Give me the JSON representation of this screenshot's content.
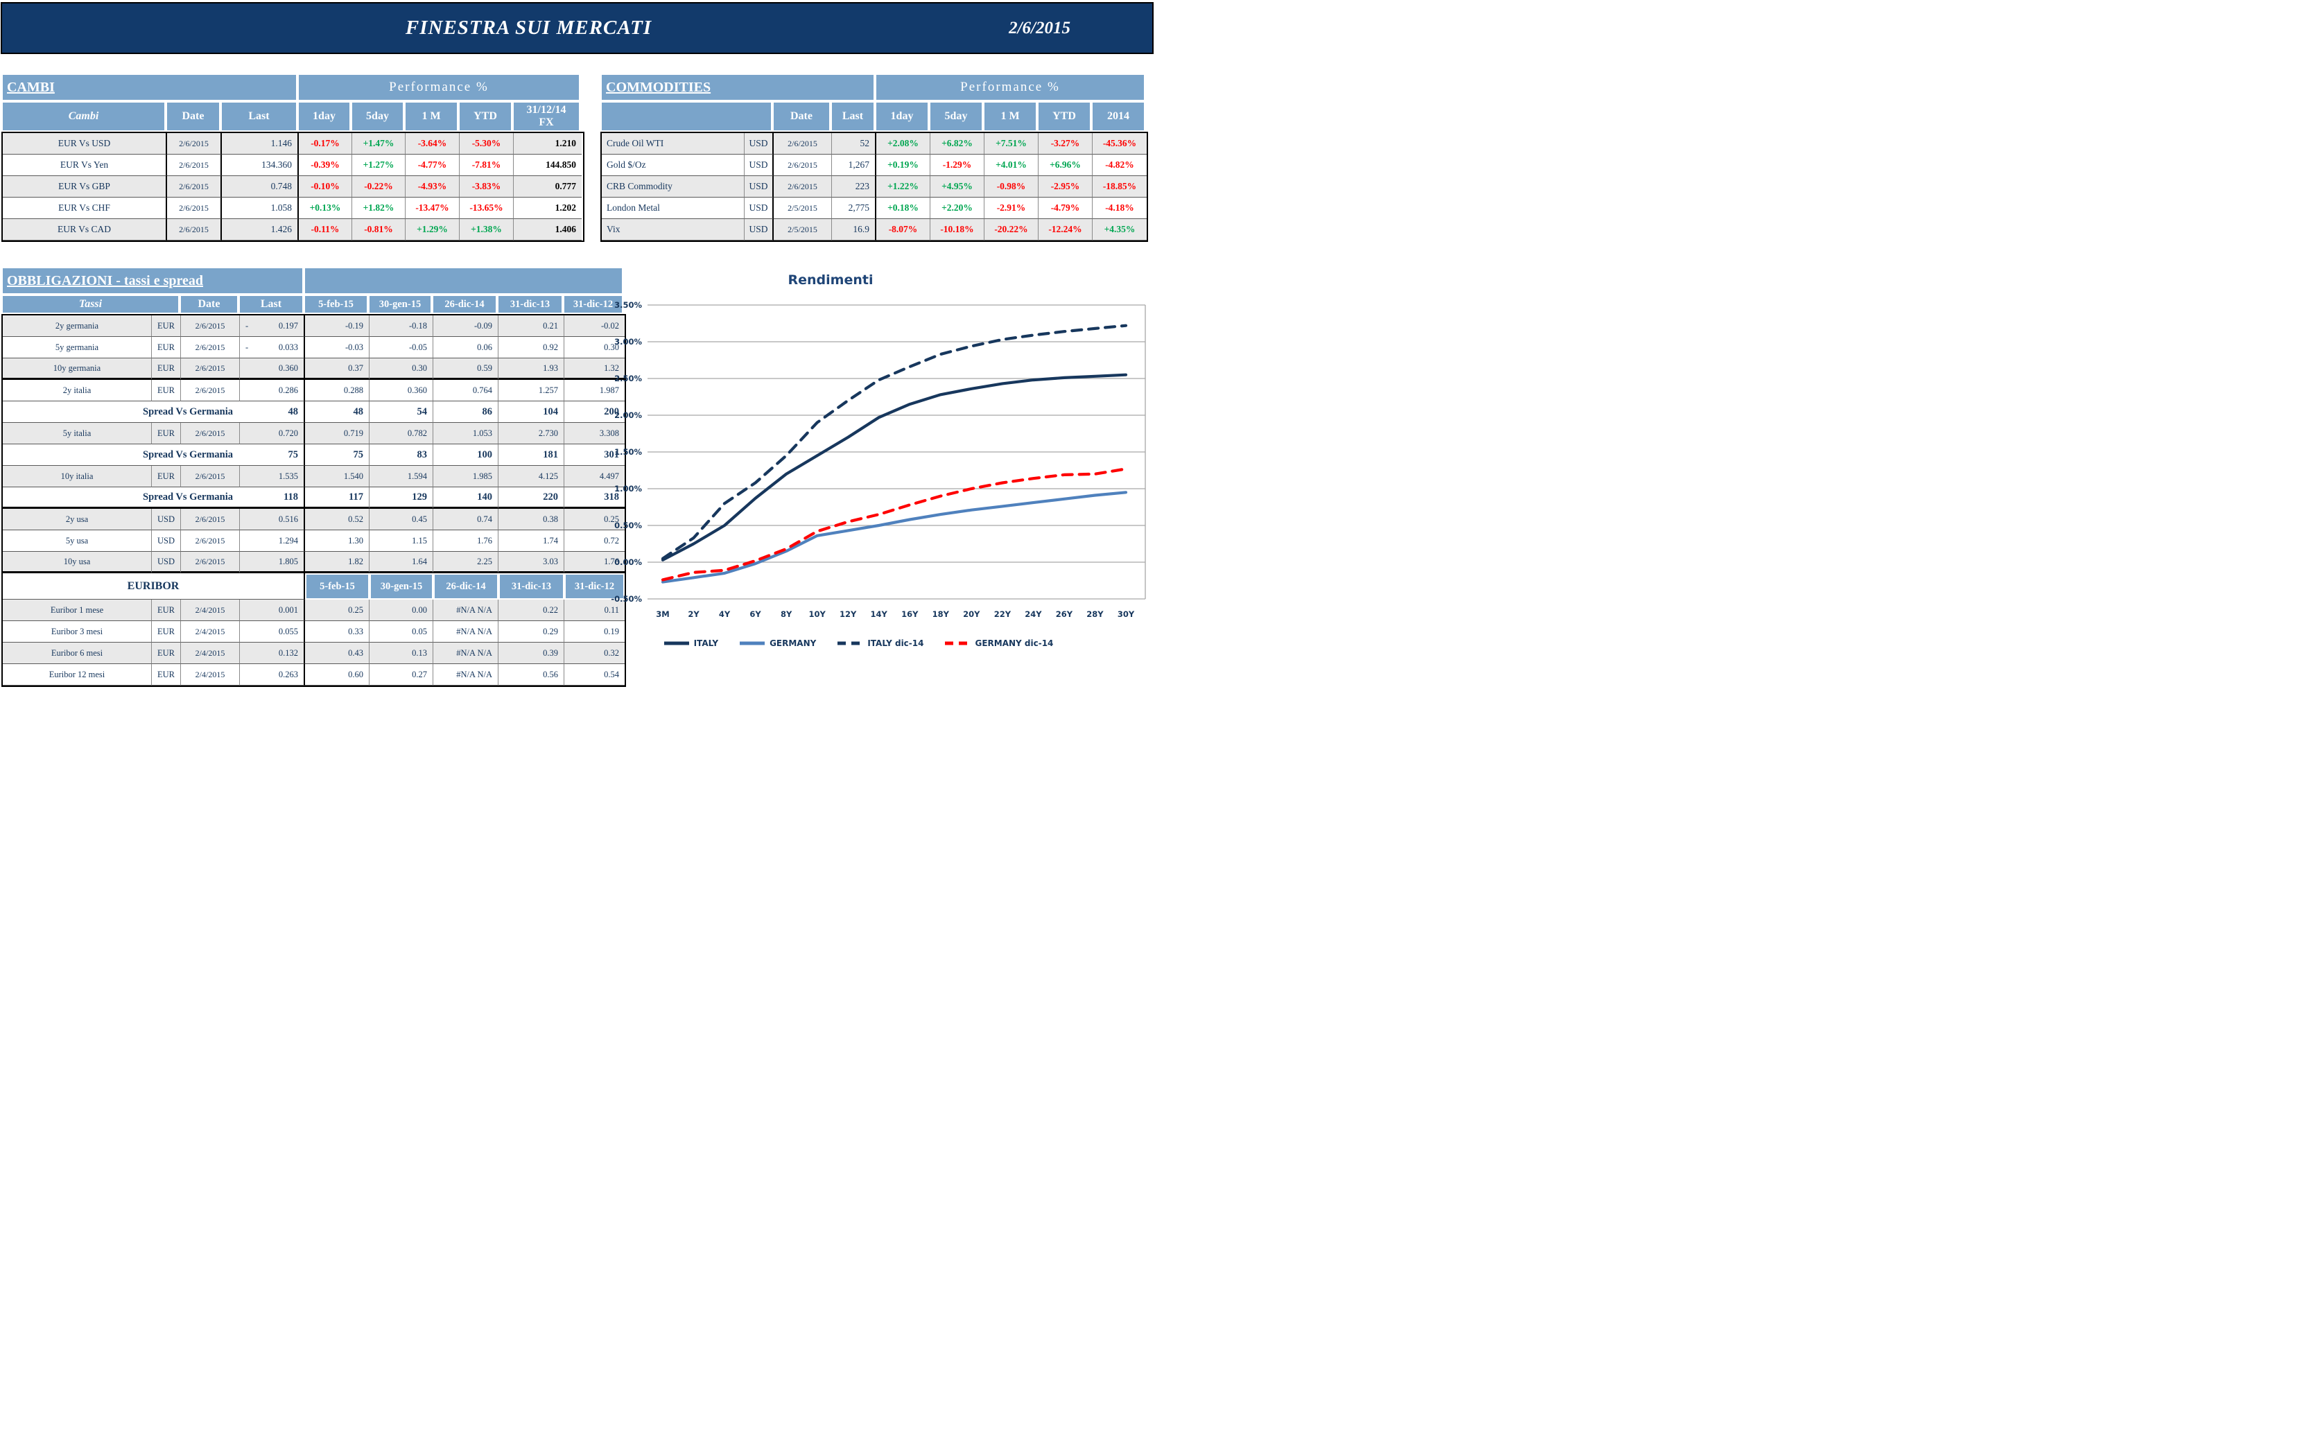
{
  "header": {
    "title": "FINESTRA SUI MERCATI",
    "date": "2/6/2015"
  },
  "colors": {
    "banner_navy": "#123a6b",
    "header_blue": "#7aa4ca",
    "text_navy": "#17375d",
    "positive_green": "#00a651",
    "negative_red": "#fe0000",
    "row_shade": "#e9e9e9"
  },
  "cambi": {
    "title": "CAMBI",
    "perf_title": "Performance %",
    "columns": [
      "Cambi",
      "Date",
      "Last",
      "1day",
      "5day",
      "1 M",
      "YTD",
      "31/12/14\nFX"
    ],
    "rows": [
      {
        "label": "EUR Vs USD",
        "date": "2/6/2015",
        "last": "1.146",
        "perf": [
          "-0.17%",
          "+1.47%",
          "-3.64%",
          "-5.30%"
        ],
        "fx": "1.210"
      },
      {
        "label": "EUR Vs Yen",
        "date": "2/6/2015",
        "last": "134.360",
        "perf": [
          "-0.39%",
          "+1.27%",
          "-4.77%",
          "-7.81%"
        ],
        "fx": "144.850"
      },
      {
        "label": "EUR Vs GBP",
        "date": "2/6/2015",
        "last": "0.748",
        "perf": [
          "-0.10%",
          "-0.22%",
          "-4.93%",
          "-3.83%"
        ],
        "fx": "0.777"
      },
      {
        "label": "EUR Vs CHF",
        "date": "2/6/2015",
        "last": "1.058",
        "perf": [
          "+0.13%",
          "+1.82%",
          "-13.47%",
          "-13.65%"
        ],
        "fx": "1.202"
      },
      {
        "label": "EUR Vs CAD",
        "date": "2/6/2015",
        "last": "1.426",
        "perf": [
          "-0.11%",
          "-0.81%",
          "+1.29%",
          "+1.38%"
        ],
        "fx": "1.406"
      }
    ]
  },
  "commodities": {
    "title": "COMMODITIES",
    "perf_title": "Performance %",
    "columns": [
      "",
      "Date",
      "Last",
      "1day",
      "5day",
      "1 M",
      "YTD",
      "2014"
    ],
    "rows": [
      {
        "label": "Crude Oil WTI",
        "ccy": "USD",
        "date": "2/6/2015",
        "last": "52",
        "perf": [
          "+2.08%",
          "+6.82%",
          "+7.51%",
          "-3.27%",
          "-45.36%"
        ]
      },
      {
        "label": "Gold $/Oz",
        "ccy": "USD",
        "date": "2/6/2015",
        "last": "1,267",
        "perf": [
          "+0.19%",
          "-1.29%",
          "+4.01%",
          "+6.96%",
          "-4.82%"
        ]
      },
      {
        "label": "CRB Commodity",
        "ccy": "USD",
        "date": "2/6/2015",
        "last": "223",
        "perf": [
          "+1.22%",
          "+4.95%",
          "-0.98%",
          "-2.95%",
          "-18.85%"
        ]
      },
      {
        "label": "London Metal",
        "ccy": "USD",
        "date": "2/5/2015",
        "last": "2,775",
        "perf": [
          "+0.18%",
          "+2.20%",
          "-2.91%",
          "-4.79%",
          "-4.18%"
        ]
      },
      {
        "label": "Vix",
        "ccy": "USD",
        "date": "2/5/2015",
        "last": "16.9",
        "perf": [
          "-8.07%",
          "-10.18%",
          "-20.22%",
          "-12.24%",
          "+4.35%"
        ]
      }
    ]
  },
  "obbligazioni": {
    "title": "OBBLIGAZIONI - tassi e spread",
    "header": {
      "label": "Tassi",
      "date": "Date",
      "last": "Last",
      "dates": [
        "5-feb-15",
        "30-gen-15",
        "26-dic-14",
        "31-dic-13",
        "31-dic-12"
      ]
    },
    "euribor_label": "EURIBOR",
    "rows": [
      {
        "type": "rate",
        "label": "2y germania",
        "ccy": "EUR",
        "date": "2/6/2015",
        "neg_last": true,
        "last": "0.197",
        "vals": [
          "-0.19",
          "-0.18",
          "-0.09",
          "0.21",
          "-0.02"
        ],
        "shade": true
      },
      {
        "type": "rate",
        "label": "5y germania",
        "ccy": "EUR",
        "date": "2/6/2015",
        "neg_last": true,
        "last": "0.033",
        "vals": [
          "-0.03",
          "-0.05",
          "0.06",
          "0.92",
          "0.30"
        ],
        "shade": false
      },
      {
        "type": "rate",
        "label": "10y germania",
        "ccy": "EUR",
        "date": "2/6/2015",
        "neg_last": false,
        "last": "0.360",
        "vals": [
          "0.37",
          "0.30",
          "0.59",
          "1.93",
          "1.32"
        ],
        "shade": true,
        "heavy_after": true
      },
      {
        "type": "rate",
        "label": "2y italia",
        "ccy": "EUR",
        "date": "2/6/2015",
        "neg_last": false,
        "last": "0.286",
        "vals": [
          "0.288",
          "0.360",
          "0.764",
          "1.257",
          "1.987"
        ],
        "shade": false
      },
      {
        "type": "spread",
        "label": "Spread Vs Germania",
        "last": "48",
        "vals": [
          "48",
          "54",
          "86",
          "104",
          "200"
        ]
      },
      {
        "type": "rate",
        "label": "5y italia",
        "ccy": "EUR",
        "date": "2/6/2015",
        "neg_last": false,
        "last": "0.720",
        "vals": [
          "0.719",
          "0.782",
          "1.053",
          "2.730",
          "3.308"
        ],
        "shade": true
      },
      {
        "type": "spread",
        "label": "Spread Vs Germania",
        "last": "75",
        "vals": [
          "75",
          "83",
          "100",
          "181",
          "301"
        ]
      },
      {
        "type": "rate",
        "label": "10y italia",
        "ccy": "EUR",
        "date": "2/6/2015",
        "neg_last": false,
        "last": "1.535",
        "vals": [
          "1.540",
          "1.594",
          "1.985",
          "4.125",
          "4.497"
        ],
        "shade": true
      },
      {
        "type": "spread",
        "label": "Spread Vs Germania",
        "last": "118",
        "vals": [
          "117",
          "129",
          "140",
          "220",
          "318"
        ],
        "heavy_after": true
      },
      {
        "type": "rate",
        "label": "2y usa",
        "ccy": "USD",
        "date": "2/6/2015",
        "neg_last": false,
        "last": "0.516",
        "vals": [
          "0.52",
          "0.45",
          "0.74",
          "0.38",
          "0.25"
        ],
        "shade": true
      },
      {
        "type": "rate",
        "label": "5y usa",
        "ccy": "USD",
        "date": "2/6/2015",
        "neg_last": false,
        "last": "1.294",
        "vals": [
          "1.30",
          "1.15",
          "1.76",
          "1.74",
          "0.72"
        ],
        "shade": false
      },
      {
        "type": "rate",
        "label": "10y usa",
        "ccy": "USD",
        "date": "2/6/2015",
        "neg_last": false,
        "last": "1.805",
        "vals": [
          "1.82",
          "1.64",
          "2.25",
          "3.03",
          "1.76"
        ],
        "shade": true,
        "heavy_after": true
      },
      {
        "type": "euribor_header"
      },
      {
        "type": "rate",
        "label": "Euribor 1 mese",
        "ccy": "EUR",
        "date": "2/4/2015",
        "neg_last": false,
        "last": "0.001",
        "vals": [
          "0.25",
          "0.00",
          "#N/A N/A",
          "0.22",
          "0.11"
        ],
        "shade": true
      },
      {
        "type": "rate",
        "label": "Euribor 3 mesi",
        "ccy": "EUR",
        "date": "2/4/2015",
        "neg_last": false,
        "last": "0.055",
        "vals": [
          "0.33",
          "0.05",
          "#N/A N/A",
          "0.29",
          "0.19"
        ],
        "shade": false
      },
      {
        "type": "rate",
        "label": "Euribor 6 mesi",
        "ccy": "EUR",
        "date": "2/4/2015",
        "neg_last": false,
        "last": "0.132",
        "vals": [
          "0.43",
          "0.13",
          "#N/A N/A",
          "0.39",
          "0.32"
        ],
        "shade": true
      },
      {
        "type": "rate",
        "label": "Euribor 12 mesi",
        "ccy": "EUR",
        "date": "2/4/2015",
        "neg_last": false,
        "last": "0.263",
        "vals": [
          "0.60",
          "0.27",
          "#N/A N/A",
          "0.56",
          "0.54"
        ],
        "shade": false
      }
    ]
  },
  "chart_data": {
    "type": "line",
    "title": "Rendimenti",
    "categories": [
      "3M",
      "2Y",
      "4Y",
      "6Y",
      "8Y",
      "10Y",
      "12Y",
      "14Y",
      "16Y",
      "18Y",
      "20Y",
      "22Y",
      "24Y",
      "26Y",
      "28Y",
      "30Y"
    ],
    "y_ticks": [
      "3.50%",
      "3.00%",
      "2.50%",
      "2.00%",
      "1.50%",
      "1.00%",
      "0.50%",
      "0.00%",
      "-0.50%"
    ],
    "ylim": [
      -0.5,
      3.5
    ],
    "grid": true,
    "legend_position": "bottom",
    "series": [
      {
        "name": "ITALY",
        "color": "#17375d",
        "dashed": false,
        "values": [
          0.03,
          0.25,
          0.5,
          0.87,
          1.2,
          1.45,
          1.7,
          1.97,
          2.15,
          2.28,
          2.36,
          2.43,
          2.48,
          2.51,
          2.53,
          2.55
        ]
      },
      {
        "name": "GERMANY",
        "color": "#4f81bd",
        "dashed": false,
        "values": [
          -0.27,
          -0.21,
          -0.15,
          -0.02,
          0.15,
          0.36,
          0.43,
          0.5,
          0.58,
          0.65,
          0.71,
          0.76,
          0.81,
          0.86,
          0.91,
          0.95
        ]
      },
      {
        "name": "ITALY dic-14",
        "color": "#17375d",
        "dashed": true,
        "values": [
          0.05,
          0.33,
          0.8,
          1.08,
          1.45,
          1.9,
          2.2,
          2.48,
          2.66,
          2.83,
          2.94,
          3.03,
          3.09,
          3.14,
          3.18,
          3.22
        ]
      },
      {
        "name": "GERMANY dic-14",
        "color": "#fe0000",
        "dashed": true,
        "values": [
          -0.24,
          -0.14,
          -0.11,
          0.02,
          0.18,
          0.42,
          0.55,
          0.65,
          0.78,
          0.9,
          1.0,
          1.08,
          1.14,
          1.19,
          1.2,
          1.27
        ]
      }
    ]
  }
}
